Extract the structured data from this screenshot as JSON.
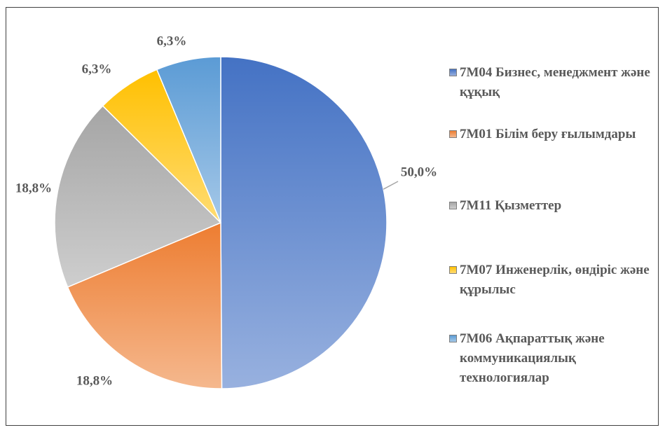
{
  "chart_data": {
    "type": "pie",
    "categories": [
      "7M04 Бизнес, менеджмент және құқық",
      "7M01 Білім беру ғылымдары",
      "7M11 Қызметтер",
      "7M07 Инженерлік, өндіріс және құрылыс",
      "7M06 Ақпараттық және коммуникациялық технологиялар"
    ],
    "values": [
      50.0,
      18.8,
      18.8,
      6.3,
      6.3
    ],
    "value_labels": [
      "50,0%",
      "18,8%",
      "18,8%",
      "6,3%",
      "6,3%"
    ],
    "colors": [
      "#4472c4",
      "#ed7d31",
      "#a5a5a5",
      "#ffc000",
      "#5b9bd5"
    ],
    "legend": "right"
  }
}
